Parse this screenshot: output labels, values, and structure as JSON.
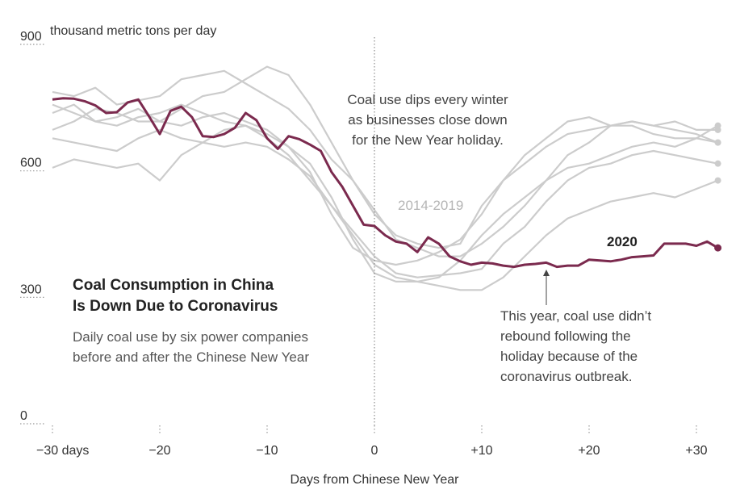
{
  "heading": {
    "title_lines": [
      "Coal Consumption in China",
      "Is Down Due to Coronavirus"
    ],
    "subtitle_lines": [
      "Daily coal use by six power companies",
      "before and after the Chinese New Year"
    ]
  },
  "annotations": {
    "winter_dip": [
      "Coal use dips every winter",
      "as businesses close down",
      "for the New Year holiday."
    ],
    "rebound": [
      "This year, coal use didn’t",
      "rebound following the",
      "holiday because of the",
      "coronavirus outbreak."
    ]
  },
  "colors": {
    "highlight": "#7b2a4e",
    "background_series": "#cccccc",
    "axis": "#999999"
  },
  "chart_data": {
    "type": "line",
    "xlabel": "Days from Chinese New Year",
    "ylabel": "thousand metric tons per day",
    "xlim": [
      -31,
      32
    ],
    "ylim": [
      0,
      900
    ],
    "y_ticks": [
      {
        "value": 0,
        "label": "0"
      },
      {
        "value": 300,
        "label": "300"
      },
      {
        "value": 600,
        "label": "600"
      },
      {
        "value": 900,
        "label": "900"
      }
    ],
    "y_unit_label": "thousand metric tons per day",
    "x_ticks": [
      {
        "value": -30,
        "label": "−30 days"
      },
      {
        "value": -20,
        "label": "−20"
      },
      {
        "value": -10,
        "label": "−10"
      },
      {
        "value": 0,
        "label": "0"
      },
      {
        "value": 10,
        "label": "+10"
      },
      {
        "value": 20,
        "label": "+20"
      },
      {
        "value": 30,
        "label": "+30"
      }
    ],
    "background_label": "2014-2019",
    "highlight_label": "2020",
    "series": [
      {
        "name": "2020",
        "highlight": true,
        "x": [
          -30,
          -29,
          -28,
          -27,
          -26,
          -25,
          -24,
          -23,
          -22,
          -21,
          -20,
          -19,
          -18,
          -17,
          -16,
          -15,
          -14,
          -13,
          -12,
          -11,
          -10,
          -9,
          -8,
          -7,
          -6,
          -5,
          -4,
          -3,
          -2,
          -1,
          0,
          1,
          2,
          3,
          4,
          5,
          6,
          7,
          8,
          9,
          10,
          11,
          12,
          13,
          14,
          15,
          16,
          17,
          18,
          19,
          20,
          21,
          22,
          23,
          24,
          25,
          26,
          27,
          28,
          29,
          30,
          31,
          32
        ],
        "values": [
          752,
          755,
          754,
          748,
          738,
          720,
          722,
          745,
          752,
          712,
          670,
          725,
          735,
          710,
          665,
          663,
          670,
          685,
          720,
          703,
          660,
          635,
          665,
          658,
          645,
          630,
          580,
          545,
          500,
          455,
          452,
          430,
          415,
          410,
          390,
          425,
          410,
          380,
          368,
          360,
          365,
          363,
          358,
          355,
          360,
          362,
          365,
          355,
          358,
          358,
          372,
          370,
          368,
          372,
          378,
          380,
          382,
          410,
          410,
          410,
          405,
          415,
          400
        ]
      },
      {
        "name": "",
        "x": [
          -30,
          -28,
          -26,
          -24,
          -22,
          -20,
          -18,
          -16,
          -14,
          -12,
          -10,
          -8,
          -6,
          -4,
          -2,
          0,
          2,
          4,
          6,
          8,
          10,
          12,
          14,
          16,
          18,
          20,
          22,
          24,
          26,
          28,
          30,
          32
        ],
        "values": [
          770,
          760,
          780,
          740,
          750,
          760,
          800,
          810,
          820,
          790,
          760,
          730,
          680,
          610,
          560,
          480,
          430,
          410,
          400,
          410,
          500,
          560,
          620,
          660,
          700,
          710,
          690,
          690,
          670,
          660,
          660,
          690
        ]
      },
      {
        "name": "",
        "x": [
          -30,
          -28,
          -26,
          -24,
          -22,
          -20,
          -18,
          -16,
          -14,
          -12,
          -10,
          -8,
          -6,
          -4,
          -2,
          0,
          2,
          4,
          6,
          8,
          10,
          12,
          14,
          16,
          18,
          20,
          22,
          24,
          26,
          28,
          30,
          32
        ],
        "values": [
          680,
          700,
          730,
          720,
          700,
          700,
          730,
          760,
          770,
          800,
          830,
          810,
          740,
          650,
          560,
          490,
          420,
          400,
          380,
          380,
          410,
          450,
          500,
          560,
          620,
          650,
          690,
          700,
          690,
          680,
          670,
          650
        ]
      },
      {
        "name": "",
        "x": [
          -30,
          -28,
          -26,
          -24,
          -22,
          -20,
          -18,
          -16,
          -14,
          -12,
          -10,
          -8,
          -6,
          -4,
          -2,
          0,
          2,
          4,
          6,
          8,
          10,
          12,
          14,
          16,
          18,
          20,
          22,
          24,
          26,
          28,
          30,
          32
        ],
        "values": [
          720,
          740,
          700,
          690,
          710,
          720,
          740,
          720,
          700,
          690,
          660,
          620,
          560,
          500,
          440,
          380,
          340,
          330,
          335,
          340,
          350,
          410,
          450,
          510,
          560,
          590,
          600,
          620,
          630,
          620,
          610,
          600
        ]
      },
      {
        "name": "",
        "x": [
          -30,
          -28,
          -26,
          -24,
          -22,
          -20,
          -18,
          -16,
          -14,
          -12,
          -10,
          -8,
          -6,
          -4,
          -2,
          0,
          2,
          4,
          6,
          8,
          10,
          12,
          14,
          16,
          18,
          20,
          22,
          24,
          26,
          28,
          30,
          32
        ],
        "values": [
          660,
          650,
          640,
          630,
          660,
          680,
          660,
          650,
          640,
          650,
          640,
          610,
          570,
          500,
          430,
          360,
          330,
          320,
          310,
          300,
          300,
          330,
          380,
          430,
          470,
          490,
          510,
          520,
          530,
          520,
          540,
          560
        ]
      },
      {
        "name": "",
        "x": [
          -30,
          -28,
          -26,
          -24,
          -22,
          -20,
          -18,
          -16,
          -14,
          -12,
          -10,
          -8,
          -6,
          -4,
          -2,
          0,
          2,
          4,
          6,
          8,
          10,
          12,
          14,
          16,
          18,
          20,
          22,
          24,
          26,
          28,
          30,
          32
        ],
        "values": [
          590,
          610,
          600,
          590,
          600,
          560,
          620,
          650,
          680,
          690,
          670,
          640,
          600,
          520,
          420,
          340,
          320,
          320,
          330,
          370,
          430,
          480,
          520,
          560,
          590,
          600,
          620,
          640,
          650,
          640,
          660,
          650
        ]
      },
      {
        "name": "",
        "x": [
          -30,
          -28,
          -26,
          -24,
          -22,
          -20,
          -18,
          -16,
          -14,
          -12,
          -10,
          -8,
          -6,
          -4,
          -2,
          0,
          2,
          4,
          6,
          8,
          10,
          12,
          14,
          16,
          18,
          20,
          22,
          24,
          26,
          28,
          30,
          32
        ],
        "values": [
          740,
          720,
          700,
          710,
          730,
          700,
          690,
          710,
          720,
          700,
          680,
          640,
          580,
          480,
          400,
          370,
          360,
          370,
          390,
          420,
          480,
          560,
          600,
          640,
          670,
          680,
          690,
          700,
          690,
          700,
          680,
          680
        ]
      }
    ]
  }
}
